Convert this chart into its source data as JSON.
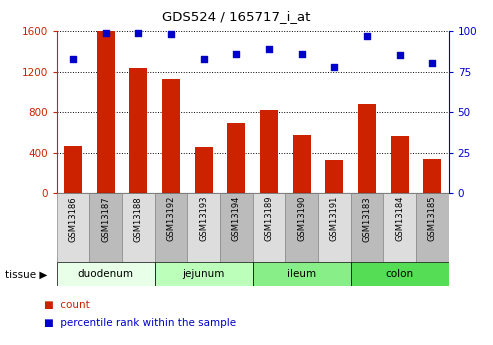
{
  "title": "GDS524 / 165717_i_at",
  "samples": [
    "GSM13186",
    "GSM13187",
    "GSM13188",
    "GSM13192",
    "GSM13193",
    "GSM13194",
    "GSM13189",
    "GSM13190",
    "GSM13191",
    "GSM13183",
    "GSM13184",
    "GSM13185"
  ],
  "counts": [
    470,
    1600,
    1240,
    1130,
    455,
    690,
    820,
    570,
    330,
    880,
    560,
    335
  ],
  "percentiles": [
    83,
    99,
    99,
    98,
    83,
    86,
    89,
    86,
    78,
    97,
    85,
    80
  ],
  "tissues": [
    {
      "label": "duodenum",
      "start": 0,
      "end": 3,
      "color": "#e8ffe8"
    },
    {
      "label": "jejunum",
      "start": 3,
      "end": 6,
      "color": "#bbffbb"
    },
    {
      "label": "ileum",
      "start": 6,
      "end": 9,
      "color": "#88ee88"
    },
    {
      "label": "colon",
      "start": 9,
      "end": 12,
      "color": "#55dd55"
    }
  ],
  "bar_color": "#cc2200",
  "dot_color": "#0000cc",
  "ylim_left": [
    0,
    1600
  ],
  "ylim_right": [
    0,
    100
  ],
  "yticks_left": [
    0,
    400,
    800,
    1200,
    1600
  ],
  "yticks_right": [
    0,
    25,
    50,
    75,
    100
  ],
  "col_bg_light": "#dddddd",
  "col_bg_dark": "#bbbbbb",
  "tissue_label": "tissue",
  "legend_count": "count",
  "legend_percentile": "percentile rank within the sample"
}
